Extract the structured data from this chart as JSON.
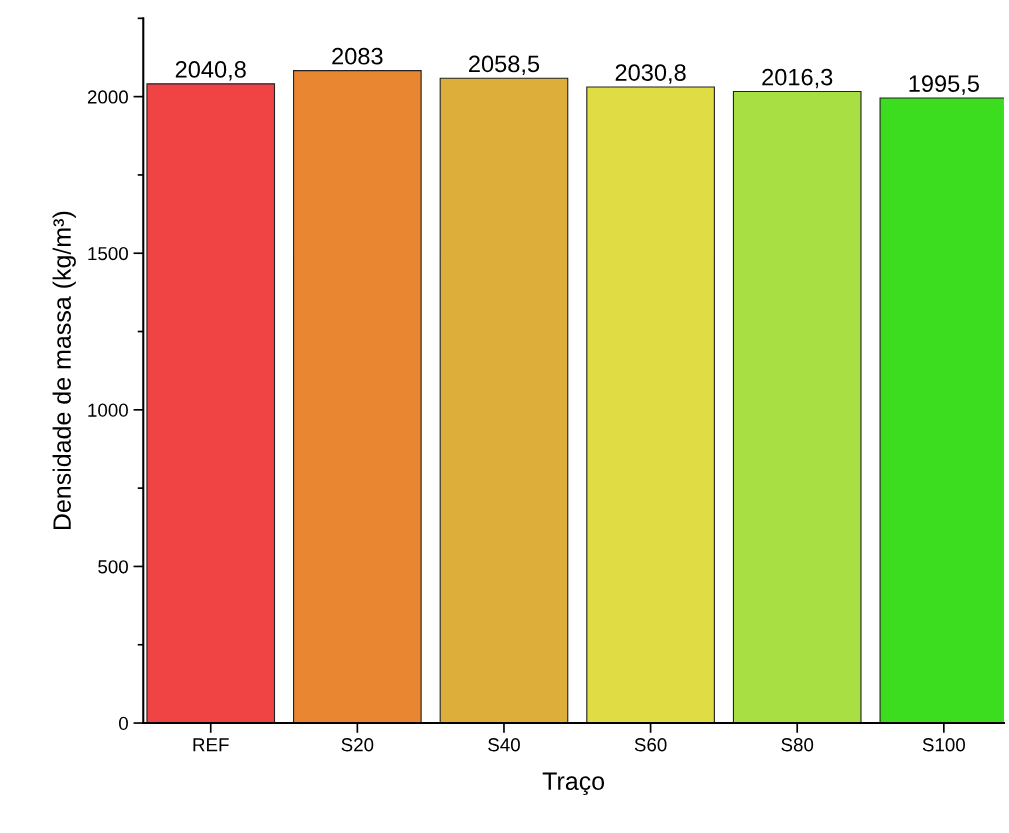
{
  "chart_data": {
    "type": "bar",
    "xlabel": "Traço",
    "ylabel": "Densidade de massa (kg/m³)",
    "categories": [
      "REF",
      "S20",
      "S40",
      "S60",
      "S80",
      "S100"
    ],
    "values": [
      2040.8,
      2083,
      2058.5,
      2030.8,
      2016.3,
      1995.5
    ],
    "colors": [
      "#f04444",
      "#e88632",
      "#ddae3a",
      "#e0dc44",
      "#a8e044",
      "#3cdc1e"
    ],
    "value_labels": [
      "2040,8",
      "2083",
      "2058,5",
      "2030,8",
      "2016,3",
      "1995,5"
    ],
    "ylim": [
      0,
      2250
    ],
    "yticks": [
      0,
      500,
      1000,
      1500,
      2000
    ],
    "grid": false,
    "legend": false
  }
}
